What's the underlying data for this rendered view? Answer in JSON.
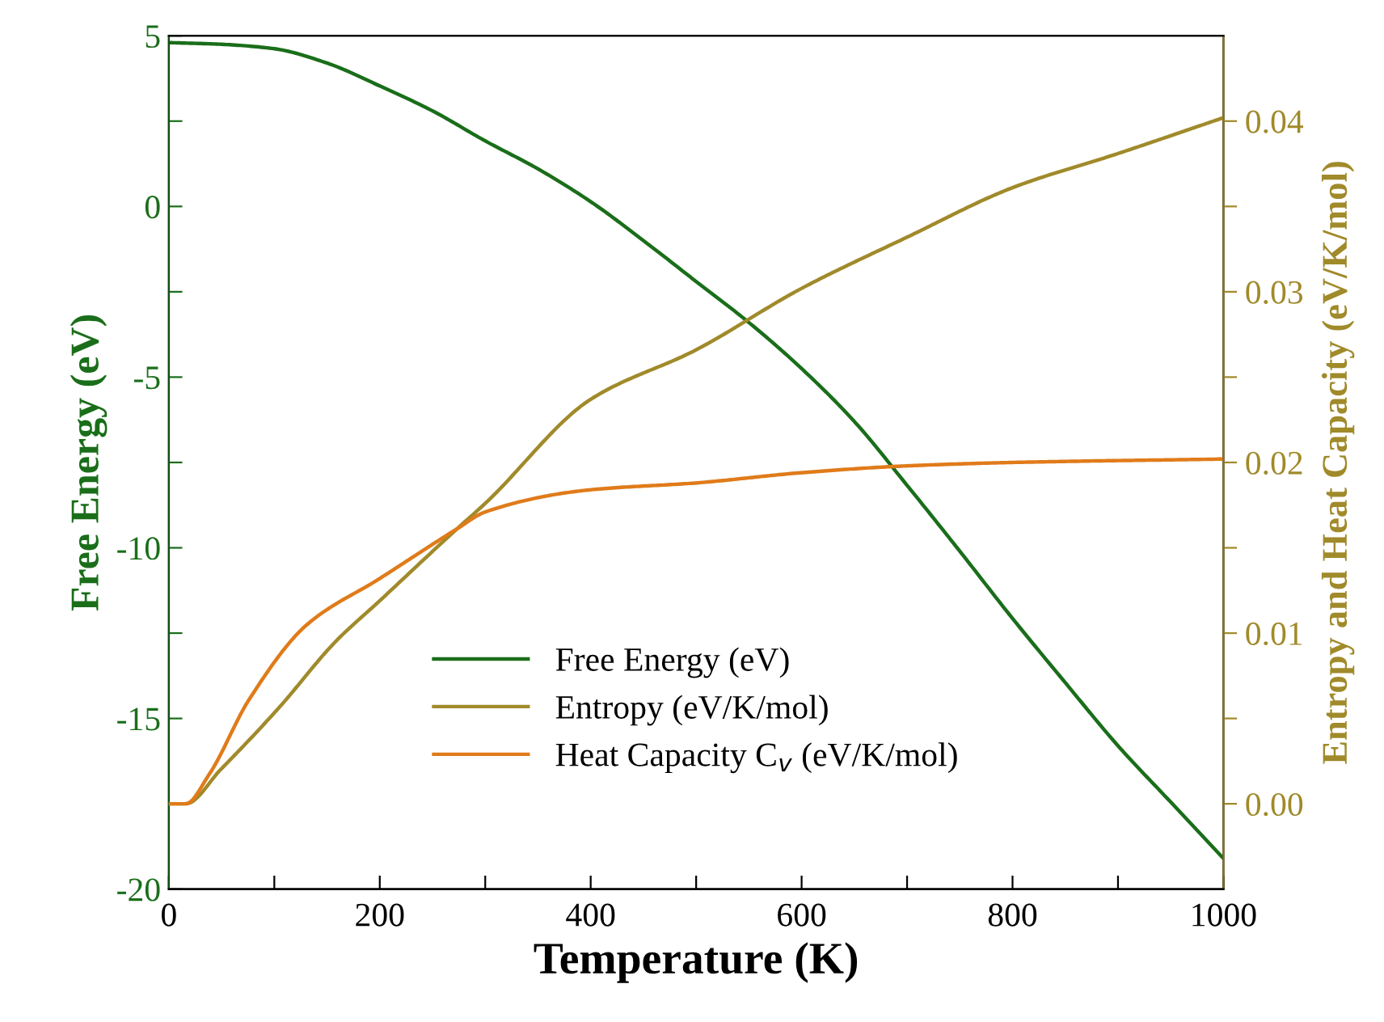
{
  "chart_data": {
    "type": "line",
    "xlabel": "Temperature (K)",
    "ylabel": "Free Energy (eV)",
    "y2label": "Entropy and Heat Capacity (eV/K/mol)",
    "xlim": [
      0,
      1000
    ],
    "xticks": [
      0,
      {
        "value": 100,
        "label": null
      },
      200,
      {
        "value": 300,
        "label": null
      },
      400,
      {
        "value": 500,
        "label": null
      },
      600,
      {
        "value": 700,
        "label": null
      },
      800,
      {
        "value": 900,
        "label": null
      },
      1000
    ],
    "ylim": [
      -20,
      5
    ],
    "yticks": [
      -20,
      {
        "value": -17.5,
        "label": null
      },
      -15,
      {
        "value": -12.5,
        "label": null
      },
      -10,
      {
        "value": -7.5,
        "label": null
      },
      -5,
      {
        "value": -2.5,
        "label": null
      },
      0,
      {
        "value": 2.5,
        "label": null
      },
      5
    ],
    "y2lim": [
      -0.005,
      0.045
    ],
    "y2ticks": [
      {
        "value": 0,
        "label": "0.00"
      },
      {
        "value": 0.005,
        "label": null
      },
      {
        "value": 0.01,
        "label": "0.01"
      },
      {
        "value": 0.015,
        "label": null
      },
      {
        "value": 0.02,
        "label": "0.02"
      },
      {
        "value": 0.025,
        "label": null
      },
      {
        "value": 0.03,
        "label": "0.03"
      },
      {
        "value": 0.035,
        "label": null
      },
      {
        "value": 0.04,
        "label": "0.04"
      }
    ],
    "grid": false,
    "legend": "bottom",
    "marker": "none",
    "line_style": "solid",
    "series": [
      {
        "name": "Free Energy (eV)",
        "color": "#1a6e1a",
        "x": [
          0,
          50,
          100,
          150,
          200,
          250,
          300,
          350,
          400,
          450,
          500,
          550,
          600,
          650,
          700,
          750,
          800,
          850,
          900,
          950,
          1000
        ],
        "values": [
          4.8,
          4.75,
          4.62,
          4.2,
          3.53,
          2.8,
          1.92,
          1.1,
          0.14,
          -1.0,
          -2.2,
          -3.4,
          -4.75,
          -6.3,
          -8.17,
          -10.1,
          -12.07,
          -13.95,
          -15.8,
          -17.45,
          -19.1
        ]
      },
      {
        "name": "Entropy (eV/K/mol)",
        "color": "#a08a2a",
        "axis": "y2",
        "x": [
          0,
          16,
          49,
          104,
          158,
          200,
          273,
          300,
          400,
          500,
          600,
          700,
          800,
          900,
          1000
        ],
        "values": [
          0,
          0,
          0.002,
          0.0056,
          0.0095,
          0.0119,
          0.0161,
          0.0176,
          0.0237,
          0.0266,
          0.0302,
          0.0332,
          0.0361,
          0.0381,
          0.0402
        ]
      },
      {
        "name": "Heat Capacity C$_{v}$ (eV/K/mol)",
        "color": "#e07b1a",
        "axis": "y2",
        "x": [
          0,
          16,
          38,
          76,
          131,
          200,
          273,
          300,
          400,
          500,
          600,
          700,
          800,
          1000
        ],
        "values": [
          0,
          0,
          0.0017,
          0.0061,
          0.0105,
          0.0132,
          0.0161,
          0.0171,
          0.0184,
          0.0188,
          0.0194,
          0.0198,
          0.02,
          0.0202
        ]
      }
    ]
  }
}
